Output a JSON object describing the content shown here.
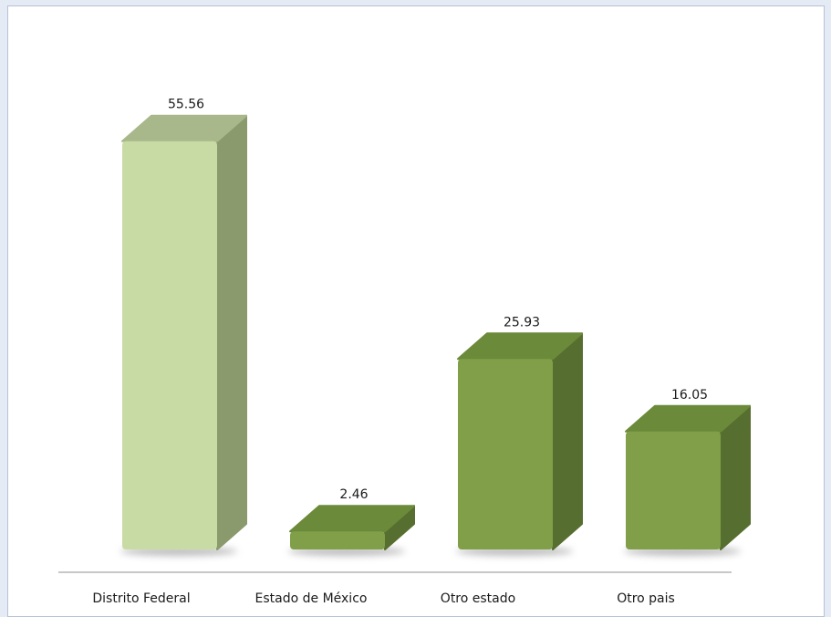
{
  "chart_data": {
    "type": "bar",
    "style": "3d-column",
    "categories": [
      "Distrito Federal",
      "Estado de México",
      "Otro estado",
      "Otro pais"
    ],
    "values": [
      55.56,
      2.46,
      25.93,
      16.05
    ],
    "value_labels": [
      "55.56",
      "2.46",
      "25.93",
      "16.05"
    ],
    "title": "",
    "xlabel": "",
    "ylabel": "",
    "ylim": [
      0,
      60
    ],
    "grid": false,
    "legend": "none",
    "colors": {
      "highlight_front": "#c9dba4",
      "highlight_top": "#a8b88a",
      "highlight_side": "#8a9a6c",
      "default_front": "#809f48",
      "default_top": "#6b8a3a",
      "default_side": "#566e2f",
      "shadow": "#b0b0b0",
      "axis": "#a6a6a6"
    },
    "highlight_index": 0
  }
}
